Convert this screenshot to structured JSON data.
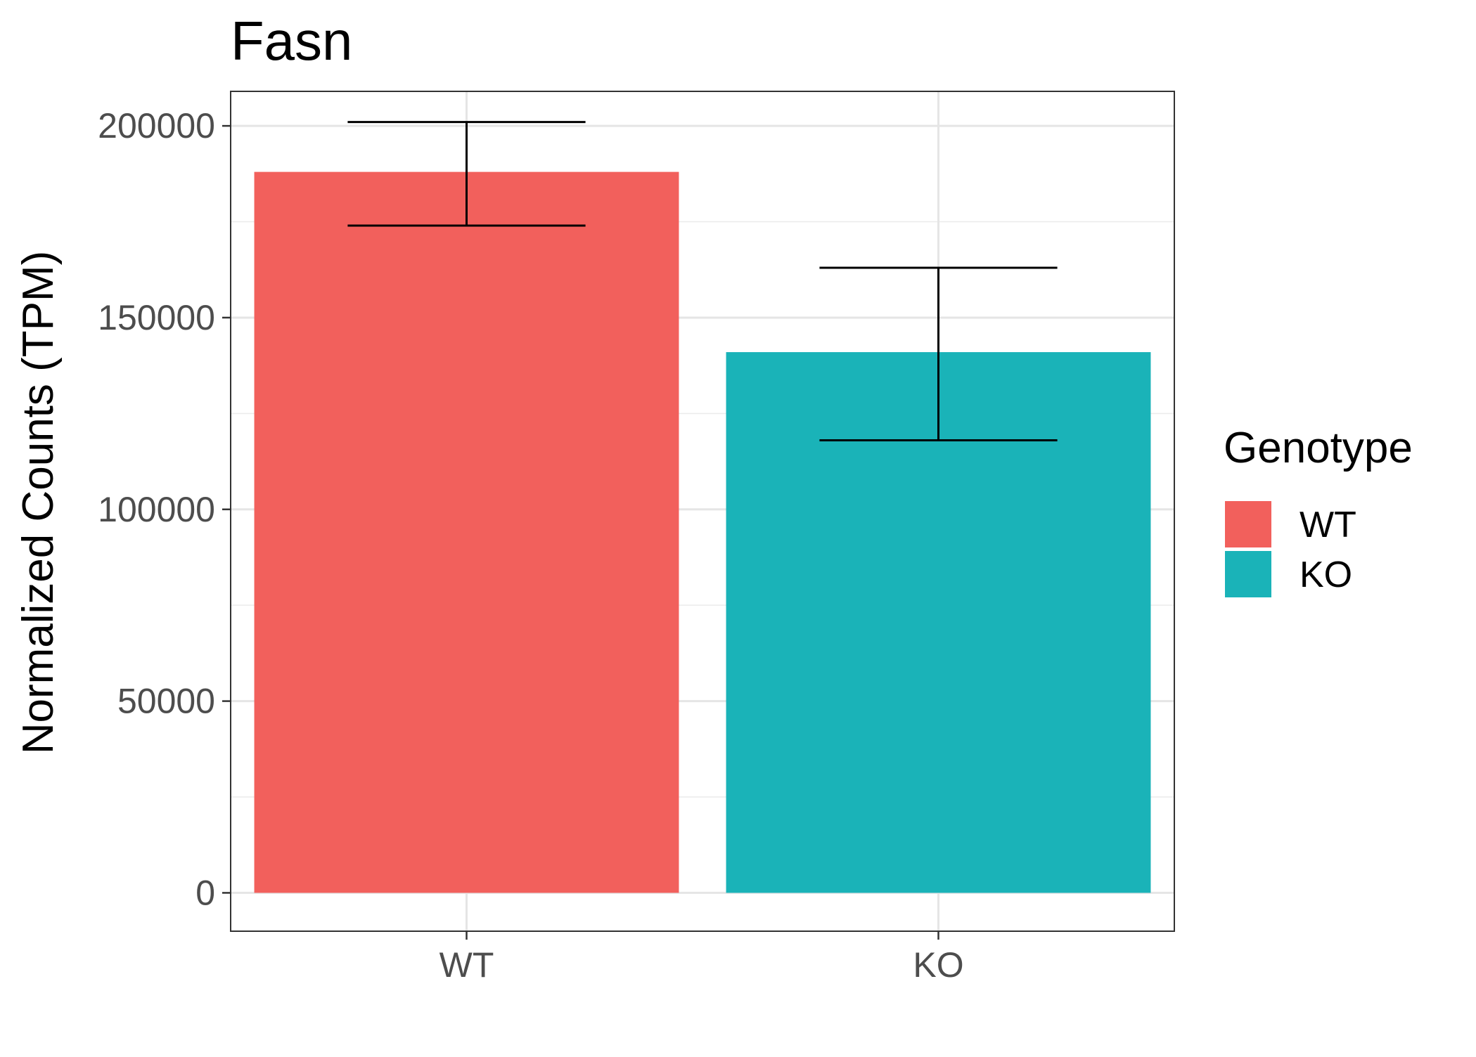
{
  "chart_data": {
    "type": "bar",
    "title": "Fasn",
    "ylabel": "Normalized Counts (TPM)",
    "xlabel": "",
    "categories": [
      "WT",
      "KO"
    ],
    "values": [
      188000,
      141000
    ],
    "error_bars": [
      {
        "category": "WT",
        "lower": 174000,
        "upper": 201000
      },
      {
        "category": "KO",
        "lower": 118000,
        "upper": 163000
      }
    ],
    "ylim": [
      -10000,
      209000
    ],
    "yticks": [
      0,
      50000,
      100000,
      150000,
      200000
    ],
    "ytick_labels": [
      "0",
      "50000",
      "100000",
      "150000",
      "200000"
    ],
    "grid": true,
    "legend": {
      "title": "Genotype",
      "position": "right",
      "entries": [
        {
          "label": "WT",
          "color": "#F2605C"
        },
        {
          "label": "KO",
          "color": "#1AB3B8"
        }
      ]
    },
    "colors": {
      "WT": "#F2605C",
      "KO": "#1AB3B8"
    }
  }
}
